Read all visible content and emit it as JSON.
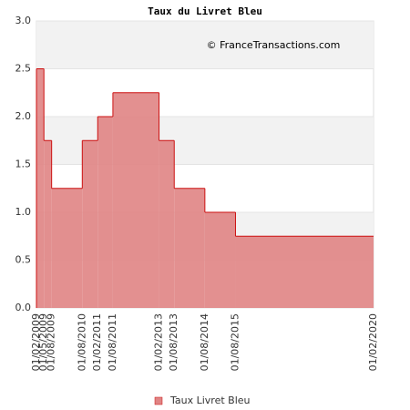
{
  "chart_data": {
    "type": "step-area",
    "title": "Taux du Livret Bleu",
    "annotation": "© FranceTransactions.com",
    "x": [
      "01/02/2009",
      "01/05/2009",
      "01/08/2009",
      "01/08/2010",
      "01/02/2011",
      "01/08/2011",
      "01/02/2013",
      "01/08/2013",
      "01/08/2014",
      "01/08/2015"
    ],
    "series": [
      {
        "name": "Taux Livret Bleu",
        "color": "#e08484",
        "line_color": "#cc1111",
        "values": [
          2.5,
          1.75,
          1.25,
          1.75,
          2.0,
          2.25,
          1.75,
          1.25,
          1.0,
          0.75
        ]
      }
    ],
    "xlim": [
      "01/02/2009",
      "01/02/2020"
    ],
    "xticks": [
      "01/02/2009",
      "01/05/2009",
      "01/08/2009",
      "01/08/2010",
      "01/02/2011",
      "01/08/2011",
      "01/02/2013",
      "01/08/2013",
      "01/08/2014",
      "01/08/2015",
      "01/02/2020"
    ],
    "ylim": [
      0,
      3
    ],
    "yticks": [
      {
        "value": 0,
        "label": "0.0"
      },
      0.5,
      {
        "value": 1,
        "label": "1.0"
      },
      1.5,
      {
        "value": 2,
        "label": "2.0"
      },
      2.5,
      {
        "value": 3,
        "label": "3.0"
      }
    ],
    "grid": true,
    "legend": "bottom"
  }
}
